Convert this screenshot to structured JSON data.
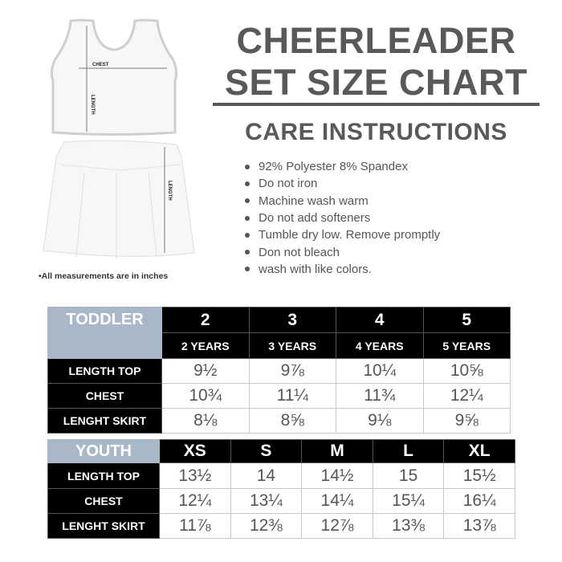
{
  "header": {
    "title_line1": "CHEERLEADER",
    "title_line2": "SET SIZE CHART",
    "care_title": "CARE INSTRUCTIONS"
  },
  "care_items": [
    "92% Polyester 8% Spandex",
    "Do not iron",
    "Machine wash warm",
    "Do not add softeners",
    "Tumble dry low. Remove promptly",
    "Don not bleach",
    "wash with like colors."
  ],
  "illustration": {
    "chest_label": "CHEST",
    "top_length_label": "LENGTH",
    "skirt_length_label": "LENGTH",
    "note": "•All measurements are in inches"
  },
  "toddler": {
    "category": "TODDLER",
    "sizes": [
      "2",
      "3",
      "4",
      "5"
    ],
    "ages": [
      "2 YEARS",
      "3 YEARS",
      "4 YEARS",
      "5 YEARS"
    ],
    "rows": [
      {
        "label": "LENGTH TOP",
        "values": [
          "9½",
          "9⅞",
          "10¼",
          "10⅝"
        ]
      },
      {
        "label": "CHEST",
        "values": [
          "10¾",
          "11¼",
          "11¾",
          "12¼"
        ]
      },
      {
        "label": "LENGHT SKIRT",
        "values": [
          "8⅛",
          "8⅝",
          "9⅛",
          "9⅝"
        ]
      }
    ]
  },
  "youth": {
    "category": "YOUTH",
    "sizes": [
      "XS",
      "S",
      "M",
      "L",
      "XL"
    ],
    "rows": [
      {
        "label": "LENGTH TOP",
        "values": [
          "13½",
          "14",
          "14½",
          "15",
          "15½"
        ]
      },
      {
        "label": "CHEST",
        "values": [
          "12¼",
          "13¼",
          "14¼",
          "15¼",
          "16¼"
        ]
      },
      {
        "label": "LENGHT SKIRT",
        "values": [
          "11⅞",
          "12⅜",
          "12⅞",
          "13⅜",
          "13⅞"
        ]
      }
    ]
  },
  "colors": {
    "title": "#58595b",
    "category_bg": "#a9b8c9",
    "header_bg": "#000000"
  }
}
